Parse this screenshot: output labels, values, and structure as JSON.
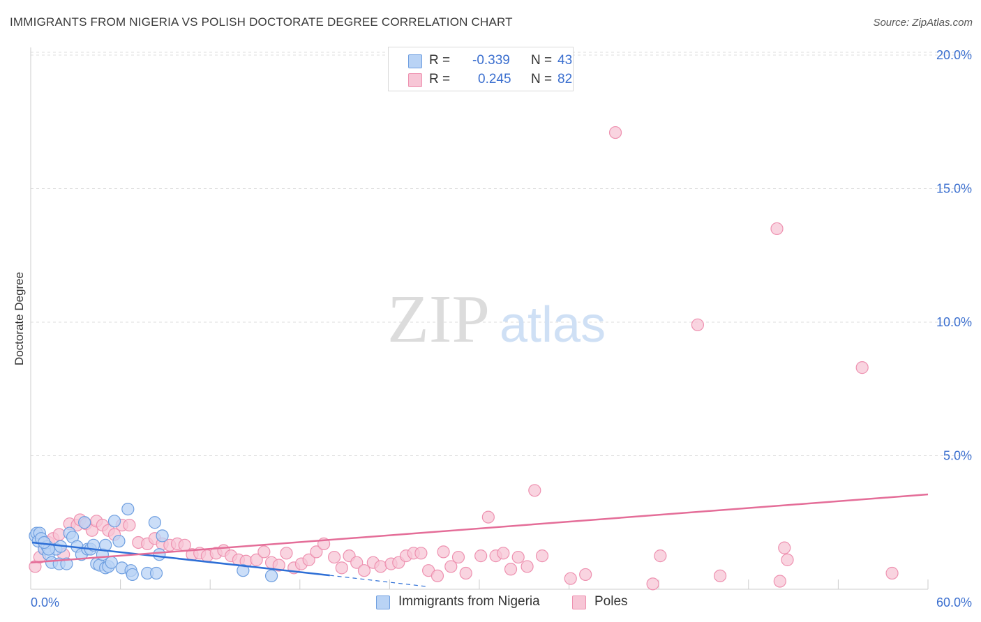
{
  "header": {
    "title": "IMMIGRANTS FROM NIGERIA VS POLISH DOCTORATE DEGREE CORRELATION CHART",
    "source": "Source: ZipAtlas.com"
  },
  "watermark": {
    "zip": "ZIP",
    "atlas": "atlas"
  },
  "colors": {
    "blue_fill": "#b9d3f5",
    "blue_stroke": "#6f9fe0",
    "blue_line": "#2e6fd6",
    "pink_fill": "#f7c6d6",
    "pink_stroke": "#ee91b0",
    "pink_line": "#e46d98",
    "axis_text": "#3b6fcf"
  },
  "legend": {
    "rows": [
      {
        "label": "R = ",
        "r": "-0.339",
        "n_label": "N = ",
        "n": "43",
        "color": "#b9d3f5"
      },
      {
        "label": "R = ",
        "r": "0.245",
        "n_label": "N = ",
        "n": "82",
        "color": "#f7c6d6"
      }
    ],
    "bottom": [
      {
        "label": "Immigrants from Nigeria",
        "color": "#b9d3f5"
      },
      {
        "label": "Poles",
        "color": "#f7c6d6"
      }
    ]
  },
  "chart_data": {
    "type": "scatter",
    "title": "IMMIGRANTS FROM NIGERIA VS POLISH DOCTORATE DEGREE CORRELATION CHART",
    "xlabel": "",
    "ylabel": "Doctorate Degree",
    "xlim": [
      0,
      60
    ],
    "ylim": [
      0,
      20.5
    ],
    "x_tick_labels": [
      "0.0%",
      "60.0%"
    ],
    "y_ticks": [
      5,
      10,
      15,
      20
    ],
    "y_tick_labels": [
      "5.0%",
      "10.0%",
      "15.0%",
      "20.0%"
    ],
    "grid": true,
    "legend_position": "top-center",
    "series": [
      {
        "name": "Immigrants from Nigeria",
        "r": -0.339,
        "n": 43,
        "trend": {
          "x0": 0.1,
          "y0": 1.75,
          "x1": 20.0,
          "y1": 0.52,
          "dash_to_x": 26.5,
          "dash_to_y": 0.1
        },
        "points": [
          [
            0.3,
            2.0
          ],
          [
            0.4,
            2.1
          ],
          [
            0.5,
            1.8
          ],
          [
            0.6,
            2.1
          ],
          [
            0.7,
            1.9
          ],
          [
            0.9,
            1.5
          ],
          [
            1.1,
            1.6
          ],
          [
            1.2,
            1.3
          ],
          [
            1.4,
            1.0
          ],
          [
            1.7,
            1.5
          ],
          [
            1.9,
            0.95
          ],
          [
            2.0,
            1.6
          ],
          [
            2.4,
            0.95
          ],
          [
            2.6,
            2.1
          ],
          [
            2.8,
            1.95
          ],
          [
            3.1,
            1.6
          ],
          [
            3.4,
            1.3
          ],
          [
            3.6,
            2.5
          ],
          [
            3.8,
            1.5
          ],
          [
            4.0,
            1.5
          ],
          [
            4.2,
            1.65
          ],
          [
            4.4,
            0.95
          ],
          [
            4.6,
            0.9
          ],
          [
            4.8,
            1.3
          ],
          [
            5.0,
            1.65
          ],
          [
            5.0,
            0.8
          ],
          [
            5.2,
            0.85
          ],
          [
            5.4,
            1.0
          ],
          [
            5.6,
            2.55
          ],
          [
            5.9,
            1.8
          ],
          [
            6.1,
            0.8
          ],
          [
            6.5,
            3.0
          ],
          [
            6.7,
            0.7
          ],
          [
            6.8,
            0.55
          ],
          [
            7.8,
            0.6
          ],
          [
            8.3,
            2.5
          ],
          [
            8.4,
            0.6
          ],
          [
            8.6,
            1.3
          ],
          [
            8.8,
            2.0
          ],
          [
            14.2,
            0.7
          ],
          [
            16.1,
            0.5
          ],
          [
            1.2,
            1.5
          ],
          [
            0.9,
            1.75
          ]
        ]
      },
      {
        "name": "Poles",
        "r": 0.245,
        "n": 82,
        "trend": {
          "x0": 0.0,
          "y0": 1.0,
          "x1": 60.0,
          "y1": 3.55
        },
        "points": [
          [
            0.3,
            0.85
          ],
          [
            0.6,
            1.2
          ],
          [
            0.9,
            1.55
          ],
          [
            1.2,
            1.75
          ],
          [
            1.5,
            1.9
          ],
          [
            1.9,
            2.05
          ],
          [
            2.2,
            1.3
          ],
          [
            2.6,
            2.45
          ],
          [
            3.1,
            2.4
          ],
          [
            3.3,
            2.6
          ],
          [
            3.7,
            2.45
          ],
          [
            4.1,
            2.2
          ],
          [
            4.4,
            2.55
          ],
          [
            4.8,
            2.4
          ],
          [
            5.2,
            2.2
          ],
          [
            5.6,
            2.05
          ],
          [
            6.1,
            2.4
          ],
          [
            6.6,
            2.4
          ],
          [
            7.2,
            1.75
          ],
          [
            7.8,
            1.7
          ],
          [
            8.3,
            1.9
          ],
          [
            8.8,
            1.7
          ],
          [
            9.3,
            1.65
          ],
          [
            9.8,
            1.7
          ],
          [
            10.3,
            1.65
          ],
          [
            10.8,
            1.3
          ],
          [
            11.3,
            1.35
          ],
          [
            11.8,
            1.25
          ],
          [
            12.4,
            1.35
          ],
          [
            12.9,
            1.45
          ],
          [
            13.4,
            1.25
          ],
          [
            13.9,
            1.1
          ],
          [
            14.4,
            1.05
          ],
          [
            15.1,
            1.1
          ],
          [
            15.6,
            1.4
          ],
          [
            16.1,
            1.0
          ],
          [
            16.6,
            0.9
          ],
          [
            17.1,
            1.35
          ],
          [
            17.6,
            0.8
          ],
          [
            18.1,
            0.95
          ],
          [
            18.6,
            1.1
          ],
          [
            19.1,
            1.4
          ],
          [
            19.6,
            1.7
          ],
          [
            20.3,
            1.2
          ],
          [
            20.8,
            0.8
          ],
          [
            21.3,
            1.25
          ],
          [
            21.8,
            1.0
          ],
          [
            22.3,
            0.7
          ],
          [
            22.9,
            1.0
          ],
          [
            23.4,
            0.85
          ],
          [
            24.1,
            0.95
          ],
          [
            24.6,
            1.0
          ],
          [
            25.1,
            1.25
          ],
          [
            25.6,
            1.35
          ],
          [
            26.1,
            1.35
          ],
          [
            26.6,
            0.7
          ],
          [
            27.2,
            0.5
          ],
          [
            27.6,
            1.4
          ],
          [
            28.1,
            0.85
          ],
          [
            28.6,
            1.2
          ],
          [
            29.1,
            0.6
          ],
          [
            30.1,
            1.25
          ],
          [
            30.6,
            2.7
          ],
          [
            31.1,
            1.25
          ],
          [
            31.6,
            1.35
          ],
          [
            32.1,
            0.75
          ],
          [
            32.6,
            1.2
          ],
          [
            33.2,
            0.85
          ],
          [
            33.7,
            3.7
          ],
          [
            34.2,
            1.25
          ],
          [
            36.1,
            0.4
          ],
          [
            37.1,
            0.55
          ],
          [
            39.1,
            17.1
          ],
          [
            41.6,
            0.2
          ],
          [
            42.1,
            1.25
          ],
          [
            44.6,
            9.9
          ],
          [
            46.1,
            0.5
          ],
          [
            50.1,
            0.3
          ],
          [
            49.9,
            13.5
          ],
          [
            50.4,
            1.55
          ],
          [
            50.6,
            1.1
          ],
          [
            55.6,
            8.3
          ],
          [
            57.6,
            0.6
          ]
        ]
      }
    ]
  }
}
